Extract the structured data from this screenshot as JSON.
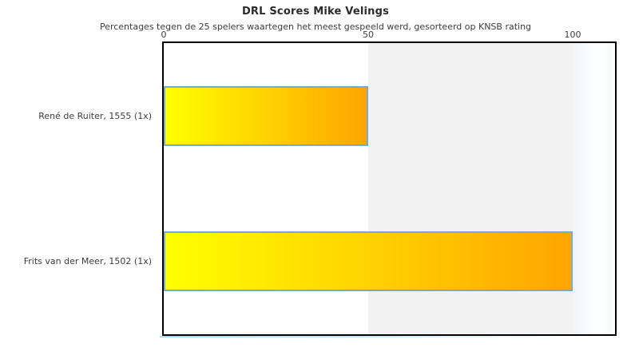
{
  "chart_data": {
    "type": "bar",
    "orientation": "horizontal",
    "title": "DRL Scores Mike Velings",
    "subtitle": "Percentages tegen de 25 spelers waartegen het meest gespeeld werd, gesorteerd op KNSB rating",
    "categories": [
      "René de Ruiter, 1555 (1x)",
      "Frits van der Meer, 1502 (1x)"
    ],
    "values": [
      50,
      100
    ],
    "x_ticks": [
      0,
      50,
      100
    ],
    "xlim": [
      0,
      110
    ],
    "axis_labels_position": "top",
    "grid": "off",
    "legend": "none",
    "shaded_band": {
      "from": 50,
      "to": 100
    },
    "colors": {
      "bar_gradient_start": "#ffff00",
      "bar_gradient_end": "#ffa500",
      "bar_border": "#74aadb",
      "plot_border": "#000000",
      "band_fill": "#f2f2f2",
      "text": "#3c3c3c",
      "accent_line": "#a8d9ee",
      "background": "#ffffff"
    }
  }
}
